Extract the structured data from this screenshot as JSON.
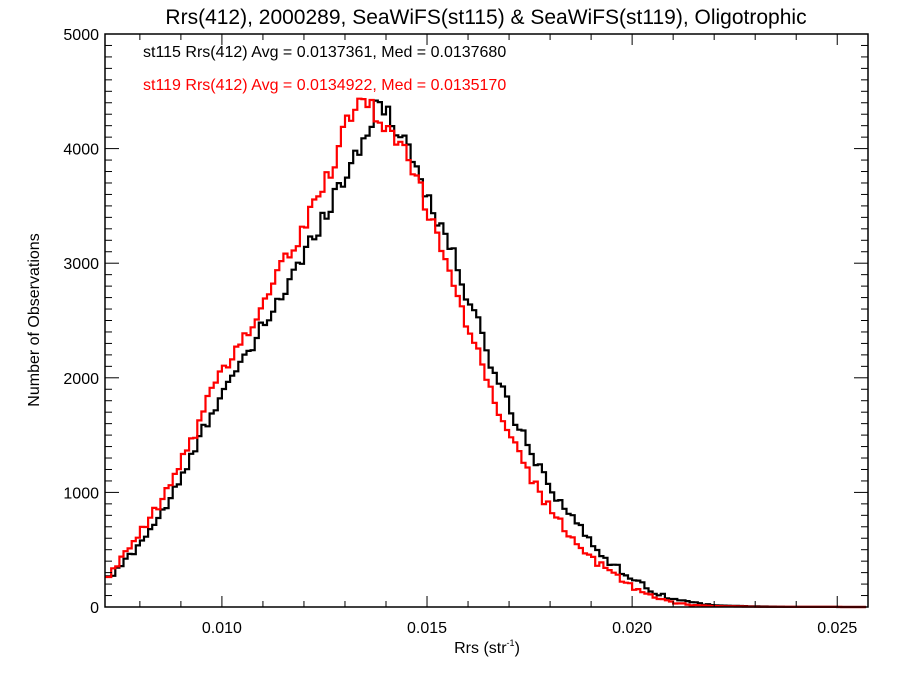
{
  "chart_data": {
    "type": "line",
    "subtype": "step-histogram",
    "title": "Rrs(412), 2000289, SeaWiFS(st115) & SeaWiFS(st119), Oligotrophic",
    "xlabel": "Rrs (str",
    "xlabel_superscript": "-1",
    "xlabel_suffix": ")",
    "ylabel": "Number of Observations",
    "xlim": [
      0.00715,
      0.02575
    ],
    "ylim": [
      0,
      5000
    ],
    "x_ticks": [
      0.01,
      0.015,
      0.02,
      0.025
    ],
    "x_tick_labels": [
      "0.010",
      "0.015",
      "0.020",
      "0.025"
    ],
    "x_minor_step": 0.001,
    "y_ticks": [
      0,
      1000,
      2000,
      3000,
      4000,
      5000
    ],
    "y_tick_labels": [
      "0",
      "1000",
      "2000",
      "3000",
      "4000",
      "5000"
    ],
    "y_minor_step": 100,
    "grid": false,
    "legend_position": "top-left",
    "bin_start": 0.0072,
    "bin_width": 0.0001,
    "series": [
      {
        "name": "st115",
        "color": "#000000",
        "annotation": "st115 Rrs(412) Avg = 0.0137361, Med = 0.0137680",
        "anchors": [
          [
            0.0072,
            230
          ],
          [
            0.0076,
            380
          ],
          [
            0.008,
            560
          ],
          [
            0.0085,
            800
          ],
          [
            0.009,
            1100
          ],
          [
            0.0095,
            1500
          ],
          [
            0.01,
            1900
          ],
          [
            0.0105,
            2100
          ],
          [
            0.011,
            2450
          ],
          [
            0.0115,
            2750
          ],
          [
            0.012,
            3050
          ],
          [
            0.0125,
            3450
          ],
          [
            0.013,
            3750
          ],
          [
            0.0135,
            4150
          ],
          [
            0.0138,
            4350
          ],
          [
            0.014,
            4350
          ],
          [
            0.0145,
            4050
          ],
          [
            0.015,
            3600
          ],
          [
            0.0155,
            3200
          ],
          [
            0.016,
            2700
          ],
          [
            0.0165,
            2200
          ],
          [
            0.017,
            1750
          ],
          [
            0.0175,
            1400
          ],
          [
            0.018,
            1050
          ],
          [
            0.0185,
            800
          ],
          [
            0.019,
            560
          ],
          [
            0.0195,
            380
          ],
          [
            0.02,
            250
          ],
          [
            0.0205,
            140
          ],
          [
            0.021,
            70
          ],
          [
            0.0215,
            35
          ],
          [
            0.022,
            15
          ],
          [
            0.023,
            5
          ],
          [
            0.024,
            1
          ],
          [
            0.0257,
            0
          ]
        ]
      },
      {
        "name": "st119",
        "color": "#ff0000",
        "annotation": "st119 Rrs(412) Avg = 0.0134922, Med = 0.0135170",
        "anchors": [
          [
            0.0072,
            260
          ],
          [
            0.0076,
            430
          ],
          [
            0.008,
            640
          ],
          [
            0.0085,
            900
          ],
          [
            0.009,
            1250
          ],
          [
            0.0095,
            1650
          ],
          [
            0.01,
            2100
          ],
          [
            0.0105,
            2300
          ],
          [
            0.011,
            2650
          ],
          [
            0.0115,
            3000
          ],
          [
            0.012,
            3300
          ],
          [
            0.0125,
            3700
          ],
          [
            0.013,
            4150
          ],
          [
            0.0133,
            4380
          ],
          [
            0.0136,
            4400
          ],
          [
            0.014,
            4200
          ],
          [
            0.0145,
            3950
          ],
          [
            0.015,
            3500
          ],
          [
            0.0155,
            3000
          ],
          [
            0.016,
            2450
          ],
          [
            0.0165,
            1950
          ],
          [
            0.017,
            1500
          ],
          [
            0.0175,
            1150
          ],
          [
            0.018,
            850
          ],
          [
            0.0185,
            620
          ],
          [
            0.019,
            420
          ],
          [
            0.0195,
            300
          ],
          [
            0.02,
            180
          ],
          [
            0.0205,
            90
          ],
          [
            0.021,
            40
          ],
          [
            0.0215,
            18
          ],
          [
            0.022,
            8
          ],
          [
            0.023,
            2
          ],
          [
            0.0257,
            0
          ]
        ]
      }
    ]
  }
}
